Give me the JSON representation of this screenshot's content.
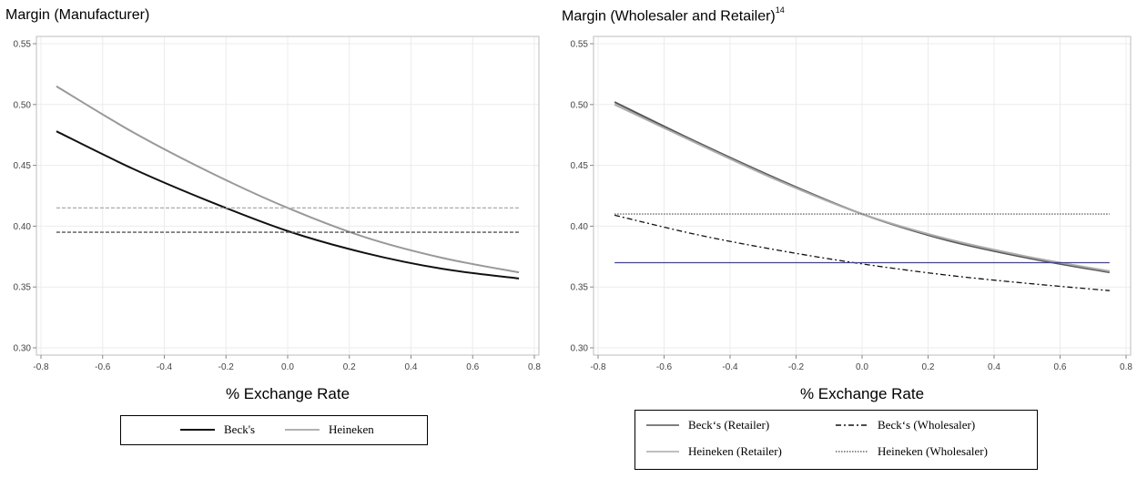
{
  "chart_data": [
    {
      "type": "line",
      "title": "Margin (Manufacturer)",
      "xlabel": "% Exchange Rate",
      "ylabel": "",
      "xlim": [
        -0.8,
        0.8
      ],
      "ylim": [
        0.3,
        0.55
      ],
      "xticks": [
        "-0.8",
        "-0.6",
        "-0.4",
        "-0.2",
        "0.0",
        "0.2",
        "0.4",
        "0.6",
        "0.8"
      ],
      "yticks": [
        "0.30",
        "0.35",
        "0.40",
        "0.45",
        "0.50",
        "0.55"
      ],
      "grid": true,
      "legend_position": "bottom",
      "series": [
        {
          "name": "Beck's",
          "color": "#111111",
          "style": "solid",
          "x": [
            -0.75,
            -0.5,
            -0.25,
            0.0,
            0.25,
            0.5,
            0.75
          ],
          "values": [
            0.478,
            0.447,
            0.42,
            0.396,
            0.378,
            0.365,
            0.357
          ]
        },
        {
          "name": "Heineken",
          "color": "#999999",
          "style": "solid",
          "x": [
            -0.75,
            -0.5,
            -0.25,
            0.0,
            0.25,
            0.5,
            0.75
          ],
          "values": [
            0.515,
            0.477,
            0.444,
            0.415,
            0.391,
            0.374,
            0.362
          ]
        },
        {
          "name": "",
          "color": "#aaaaaa",
          "style": "dashed",
          "x": [
            -0.75,
            0.75
          ],
          "values": [
            0.415,
            0.415
          ]
        },
        {
          "name": "",
          "color": "#555555",
          "style": "dashed",
          "x": [
            -0.75,
            0.75
          ],
          "values": [
            0.395,
            0.395
          ]
        }
      ],
      "legend": [
        "Beck's",
        "Heineken"
      ]
    },
    {
      "type": "line",
      "title": "Margin (Wholesaler and Retailer)",
      "title_superscript": "14",
      "xlabel": "% Exchange Rate",
      "ylabel": "",
      "xlim": [
        -0.8,
        0.8
      ],
      "ylim": [
        0.3,
        0.55
      ],
      "xticks": [
        "-0.8",
        "-0.6",
        "-0.4",
        "-0.2",
        "0.0",
        "0.2",
        "0.4",
        "0.6",
        "0.8"
      ],
      "yticks": [
        "0.30",
        "0.35",
        "0.40",
        "0.45",
        "0.50",
        "0.55"
      ],
      "grid": true,
      "legend_position": "bottom",
      "series": [
        {
          "name": "Beck's (Retailer)",
          "color": "#555555",
          "style": "solid",
          "x": [
            -0.75,
            -0.5,
            -0.25,
            0.0,
            0.25,
            0.5,
            0.75
          ],
          "values": [
            0.502,
            0.469,
            0.438,
            0.41,
            0.389,
            0.374,
            0.362
          ]
        },
        {
          "name": "Heineken (Retailer)",
          "color": "#aaaaaa",
          "style": "solid",
          "x": [
            -0.75,
            -0.5,
            -0.25,
            0.0,
            0.25,
            0.5,
            0.75
          ],
          "values": [
            0.5,
            0.468,
            0.437,
            0.41,
            0.39,
            0.375,
            0.363
          ]
        },
        {
          "name": "Beck's (Wholesaler)",
          "color": "#111111",
          "style": "dashdot",
          "x": [
            -0.75,
            -0.5,
            -0.25,
            0.0,
            0.25,
            0.5,
            0.75
          ],
          "values": [
            0.409,
            0.393,
            0.38,
            0.369,
            0.36,
            0.353,
            0.347
          ]
        },
        {
          "name": "Heineken (Wholesaler)",
          "color": "#666666",
          "style": "dotted",
          "x": [
            -0.75,
            0.75
          ],
          "values": [
            0.41,
            0.41
          ]
        },
        {
          "name": "",
          "color": "#4040b0",
          "style": "solid",
          "x": [
            -0.75,
            0.75
          ],
          "values": [
            0.37,
            0.37
          ]
        }
      ],
      "legend": [
        "Beck‘s (Retailer)",
        "Beck‘s (Wholesaler)",
        "Heineken (Retailer)",
        "Heineken (Wholesaler)"
      ]
    }
  ],
  "panels": [
    {
      "title": "Margin (Manufacturer)",
      "title_sup": "",
      "xlabel": "% Exchange Rate",
      "legend": [
        "Beck's",
        "Heineken"
      ]
    },
    {
      "title": "Margin (Wholesaler and Retailer)",
      "title_sup": "14",
      "xlabel": "% Exchange Rate",
      "legend": [
        "Beck‘s (Retailer)",
        "Beck‘s (Wholesaler)",
        "Heineken (Retailer)",
        "Heineken (Wholesaler)"
      ]
    }
  ]
}
